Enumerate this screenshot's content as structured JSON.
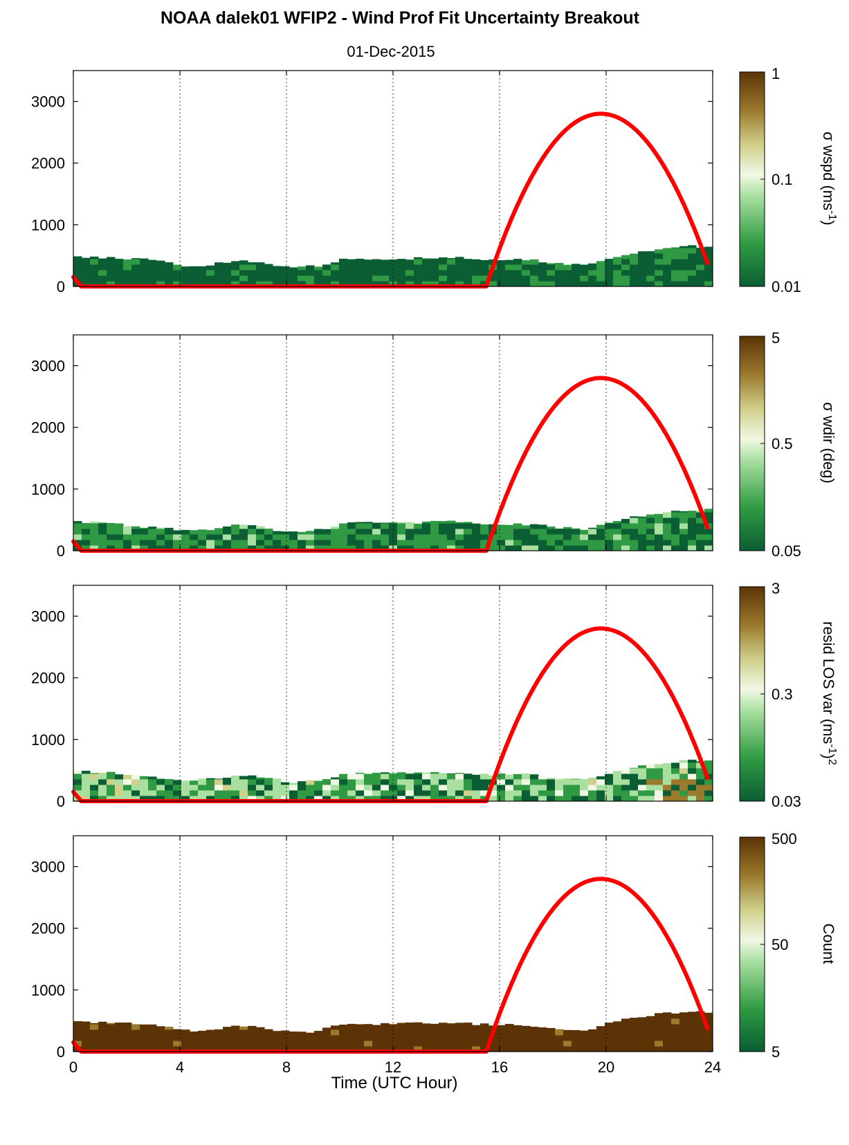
{
  "title": "NOAA dalek01 WFIP2 - Wind Prof Fit Uncertainty Breakout",
  "subtitle": "01-Dec-2015",
  "xlabel": "Time (UTC Hour)",
  "colors": {
    "sun_curve": "#ff0000",
    "colormap": [
      "#0b5e33",
      "#2f9a43",
      "#a9dfa0",
      "#f0f8e4",
      "#d0d08c",
      "#9a7a2c",
      "#5b3306"
    ]
  },
  "chart_data": [
    {
      "type": "heatmap",
      "x_range": [
        0,
        24
      ],
      "x_ticks": [
        "0",
        "4",
        "8",
        "12",
        "16",
        "20",
        "24"
      ],
      "ylim": [
        0,
        3500
      ],
      "y_ticks": [
        "0",
        "1000",
        "2000",
        "3000"
      ],
      "grid": "vertical dotted at 4-hour intervals",
      "colorbar": {
        "label_main": "σ wspd (ms",
        "label_sup": "-1",
        "label_end": ")",
        "scale": "log",
        "ticks": [
          "1",
          "0.1",
          "0.01"
        ]
      },
      "sun_elevation_curve": {
        "x": [
          0,
          0.3,
          15.5,
          16.0,
          17.0,
          18.0,
          19.0,
          19.8,
          20.5,
          21.5,
          22.5,
          23.3,
          23.8
        ],
        "y": [
          150,
          0,
          0,
          480,
          1550,
          2270,
          2680,
          2800,
          2740,
          2390,
          1780,
          1100,
          450
        ]
      },
      "data_top_heights": {
        "x": [
          0,
          1,
          2,
          3,
          4,
          5,
          6,
          7,
          8,
          9,
          10,
          11,
          12,
          13,
          14,
          15,
          16,
          17,
          18,
          19,
          20,
          21,
          22,
          23,
          23.8
        ],
        "top": [
          480,
          470,
          450,
          420,
          340,
          350,
          420,
          380,
          310,
          330,
          440,
          450,
          450,
          460,
          470,
          440,
          430,
          430,
          380,
          340,
          460,
          560,
          620,
          650,
          650
        ]
      }
    },
    {
      "type": "heatmap",
      "x_range": [
        0,
        24
      ],
      "x_ticks": [
        "0",
        "4",
        "8",
        "12",
        "16",
        "20",
        "24"
      ],
      "ylim": [
        0,
        3500
      ],
      "y_ticks": [
        "0",
        "1000",
        "2000",
        "3000"
      ],
      "grid": "vertical dotted at 4-hour intervals",
      "colorbar": {
        "label_main": "σ wdir (deg)",
        "label_sup": "",
        "label_end": "",
        "scale": "log",
        "ticks": [
          "5",
          "0.5",
          "0.05"
        ]
      },
      "sun_elevation_curve": {
        "x": [
          0,
          0.3,
          15.5,
          16.0,
          17.0,
          18.0,
          19.0,
          19.8,
          20.5,
          21.5,
          22.5,
          23.3,
          23.8
        ],
        "y": [
          150,
          0,
          0,
          480,
          1550,
          2270,
          2680,
          2800,
          2740,
          2390,
          1780,
          1100,
          450
        ]
      },
      "data_top_heights": {
        "x": [
          0,
          1,
          2,
          3,
          4,
          5,
          6,
          7,
          8,
          9,
          10,
          11,
          12,
          13,
          14,
          15,
          16,
          17,
          18,
          19,
          20,
          21,
          22,
          23,
          23.8
        ],
        "top": [
          470,
          460,
          400,
          380,
          330,
          350,
          440,
          370,
          300,
          330,
          440,
          450,
          450,
          460,
          470,
          440,
          430,
          430,
          380,
          340,
          460,
          560,
          620,
          660,
          660
        ]
      }
    },
    {
      "type": "heatmap",
      "x_range": [
        0,
        24
      ],
      "x_ticks": [
        "0",
        "4",
        "8",
        "12",
        "16",
        "20",
        "24"
      ],
      "ylim": [
        0,
        3500
      ],
      "y_ticks": [
        "0",
        "1000",
        "2000",
        "3000"
      ],
      "grid": "vertical dotted at 4-hour intervals",
      "colorbar": {
        "label_main": "resid LOS var (ms",
        "label_sup": "-1",
        "label_end": ")",
        "label_power": "2",
        "scale": "log",
        "ticks": [
          "3",
          "0.3",
          "0.03"
        ]
      },
      "sun_elevation_curve": {
        "x": [
          0,
          0.3,
          15.5,
          16.0,
          17.0,
          18.0,
          19.0,
          19.8,
          20.5,
          21.5,
          22.5,
          23.3,
          23.8
        ],
        "y": [
          150,
          0,
          0,
          480,
          1550,
          2270,
          2680,
          2800,
          2740,
          2390,
          1780,
          1100,
          450
        ]
      },
      "data_top_heights": {
        "x": [
          0,
          1,
          2,
          3,
          4,
          5,
          6,
          7,
          8,
          9,
          10,
          11,
          12,
          13,
          14,
          15,
          16,
          17,
          18,
          19,
          20,
          21,
          22,
          23,
          23.8
        ],
        "top": [
          480,
          470,
          420,
          380,
          340,
          360,
          420,
          380,
          310,
          330,
          440,
          450,
          450,
          460,
          470,
          440,
          430,
          430,
          380,
          340,
          460,
          560,
          620,
          660,
          660
        ]
      }
    },
    {
      "type": "heatmap",
      "x_range": [
        0,
        24
      ],
      "x_ticks": [
        "0",
        "4",
        "8",
        "12",
        "16",
        "20",
        "24"
      ],
      "ylim": [
        0,
        3500
      ],
      "y_ticks": [
        "0",
        "1000",
        "2000",
        "3000"
      ],
      "grid": "vertical dotted at 4-hour intervals",
      "colorbar": {
        "label_main": "Count",
        "label_sup": "",
        "label_end": "",
        "scale": "log",
        "ticks": [
          "500",
          "50",
          "5"
        ]
      },
      "sun_elevation_curve": {
        "x": [
          0,
          0.3,
          15.5,
          16.0,
          17.0,
          18.0,
          19.0,
          19.8,
          20.5,
          21.5,
          22.5,
          23.3,
          23.8
        ],
        "y": [
          150,
          0,
          0,
          480,
          1550,
          2270,
          2680,
          2800,
          2740,
          2390,
          1780,
          1100,
          450
        ]
      },
      "data_top_heights": {
        "x": [
          0,
          1,
          2,
          3,
          4,
          5,
          6,
          7,
          8,
          9,
          10,
          11,
          12,
          13,
          14,
          15,
          16,
          17,
          18,
          19,
          20,
          21,
          22,
          23,
          23.8
        ],
        "top": [
          480,
          470,
          450,
          420,
          340,
          350,
          420,
          380,
          310,
          330,
          440,
          450,
          450,
          460,
          470,
          440,
          430,
          430,
          380,
          340,
          460,
          560,
          620,
          650,
          650
        ]
      }
    }
  ]
}
